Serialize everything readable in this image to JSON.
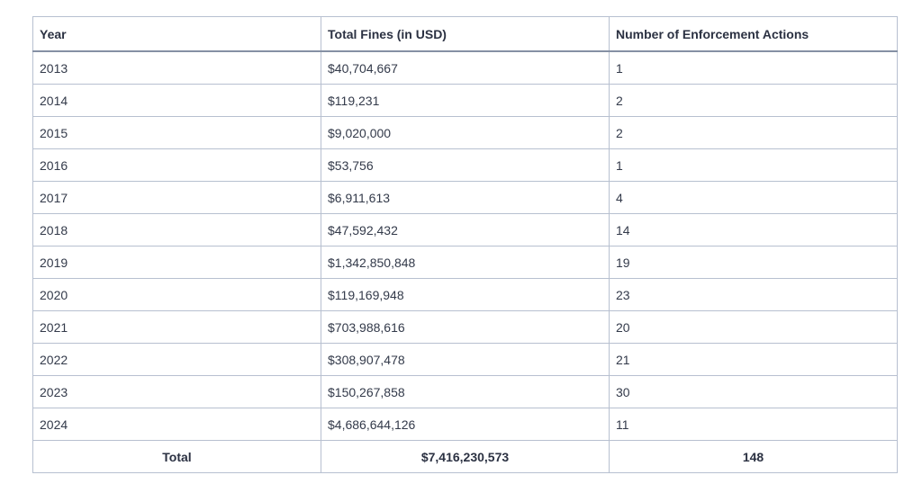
{
  "table": {
    "headers": [
      "Year",
      "Total Fines (in USD)",
      "Number of Enforcement Actions"
    ],
    "rows": [
      [
        "2013",
        "$40,704,667",
        "1"
      ],
      [
        "2014",
        "$119,231",
        "2"
      ],
      [
        "2015",
        "$9,020,000",
        "2"
      ],
      [
        "2016",
        "$53,756",
        "1"
      ],
      [
        "2017",
        "$6,911,613",
        "4"
      ],
      [
        "2018",
        "$47,592,432",
        "14"
      ],
      [
        "2019",
        "$1,342,850,848",
        "19"
      ],
      [
        "2020",
        "$119,169,948",
        "23"
      ],
      [
        "2021",
        "$703,988,616",
        "20"
      ],
      [
        "2022",
        "$308,907,478",
        "21"
      ],
      [
        "2023",
        "$150,267,858",
        "30"
      ],
      [
        "2024",
        "$4,686,644,126",
        "11"
      ]
    ],
    "total": {
      "label": "Total",
      "fines": "$7,416,230,573",
      "actions": "148"
    }
  }
}
